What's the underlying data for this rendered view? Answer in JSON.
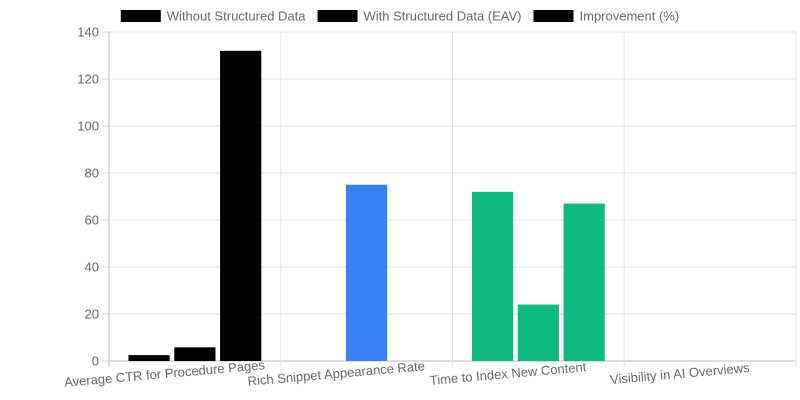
{
  "chart_data": {
    "type": "bar",
    "title": "",
    "xlabel": "",
    "ylabel": "",
    "categories": [
      "Average CTR for Procedure Pages",
      "Rich Snippet Appearance Rate",
      "Time to Index New Content",
      "Visibility in AI Overviews"
    ],
    "legend": [
      {
        "label": "Without Structured Data",
        "color": "#000000"
      },
      {
        "label": "With Structured Data (EAV)",
        "color": "#000000"
      },
      {
        "label": "Improvement (%)",
        "color": "#000000"
      }
    ],
    "legend_position": "top",
    "series": [
      {
        "name": "Without Structured Data",
        "values": [
          2.5,
          0,
          72,
          0
        ],
        "colors": [
          "#000000",
          "#3b82f6",
          "#10b981",
          "#000000"
        ]
      },
      {
        "name": "With Structured Data (EAV)",
        "values": [
          5.8,
          75,
          24,
          0
        ],
        "colors": [
          "#000000",
          "#3b82f6",
          "#10b981",
          "#000000"
        ]
      },
      {
        "name": "Improvement (%)",
        "values": [
          132,
          0,
          67,
          0
        ],
        "colors": [
          "#000000",
          "#3b82f6",
          "#10b981",
          "#000000"
        ]
      }
    ],
    "ylim": [
      0,
      140
    ],
    "y_ticks": [
      0,
      20,
      40,
      60,
      80,
      100,
      120,
      140
    ],
    "grid": true
  }
}
